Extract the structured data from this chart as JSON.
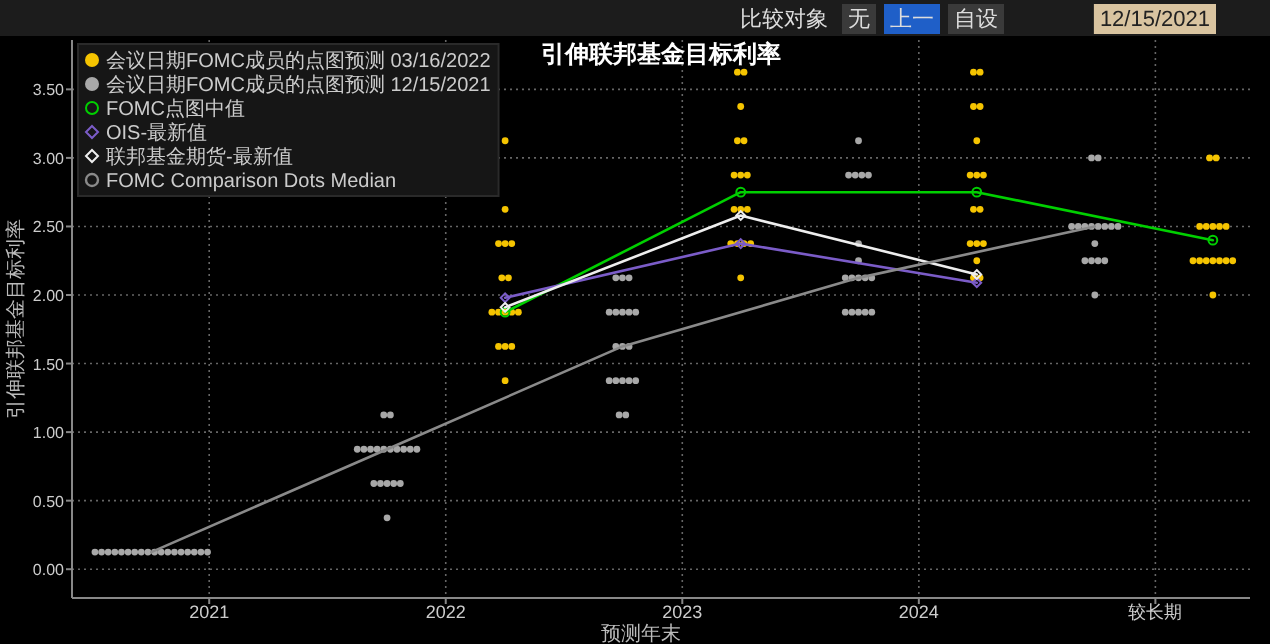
{
  "chart_data": {
    "type": "scatter",
    "title": "引伸联邦基金目标利率",
    "xlabel": "预测年末",
    "ylabel": "引伸联邦基金目标利率",
    "annotations": [
      "比较对象",
      "无",
      "上一",
      "自设",
      "12/15/2021"
    ],
    "xlim": [
      2020.42,
      2025.4
    ],
    "xticks": [
      2021,
      2022,
      2023,
      2024,
      {
        "value": 2025,
        "label": "较长期"
      }
    ],
    "ylim": [
      -0.21,
      3.86
    ],
    "yticks": [
      {
        "value": 0,
        "label": "0.00"
      },
      {
        "value": 0.5,
        "label": "0.50"
      },
      {
        "value": 1,
        "label": "1.00"
      },
      {
        "value": 1.5,
        "label": "1.50"
      },
      {
        "value": 2,
        "label": "2.00"
      },
      {
        "value": 2.5,
        "label": "2.50"
      },
      {
        "value": 3,
        "label": "3.00"
      },
      {
        "value": 3.5,
        "label": "3.50"
      }
    ],
    "grid": true,
    "legend": "top left",
    "series": [
      {
        "name": "会议日期FOMC成员的点图预测 03/16/2022",
        "color": "#f5c400",
        "x": [
          2022.251,
          2022.251,
          2022.223,
          2022.251,
          2022.279,
          2022.237,
          2022.265,
          2022.195,
          2022.223,
          2022.251,
          2022.279,
          2022.307,
          2022.223,
          2022.251,
          2022.279,
          2022.251,
          2023.233,
          2023.261,
          2023.247,
          2023.233,
          2023.261,
          2023.219,
          2023.247,
          2023.275,
          2023.219,
          2023.247,
          2023.275,
          2023.205,
          2023.233,
          2023.261,
          2023.289,
          2023.247,
          2024.231,
          2024.259,
          2024.231,
          2024.259,
          2024.245,
          2024.217,
          2024.245,
          2024.273,
          2024.231,
          2024.259,
          2024.217,
          2024.245,
          2024.273,
          2024.245,
          2024.231,
          2024.259,
          2025.229,
          2025.257,
          2025.187,
          2025.215,
          2025.243,
          2025.271,
          2025.299,
          2025.159,
          2025.187,
          2025.215,
          2025.243,
          2025.271,
          2025.299,
          2025.327,
          2025.243
        ],
        "values": [
          3.125,
          2.625,
          2.375,
          2.375,
          2.375,
          2.125,
          2.125,
          1.875,
          1.875,
          1.875,
          1.875,
          1.875,
          1.625,
          1.625,
          1.625,
          1.375,
          3.625,
          3.625,
          3.375,
          3.125,
          3.125,
          2.875,
          2.875,
          2.875,
          2.625,
          2.625,
          2.625,
          2.375,
          2.375,
          2.375,
          2.375,
          2.125,
          3.625,
          3.625,
          3.375,
          3.375,
          3.125,
          2.875,
          2.875,
          2.875,
          2.625,
          2.625,
          2.375,
          2.375,
          2.375,
          2.25,
          2.125,
          2.125,
          3.0,
          3.0,
          2.5,
          2.5,
          2.5,
          2.5,
          2.5,
          2.25,
          2.25,
          2.25,
          2.25,
          2.25,
          2.25,
          2.25,
          2.0
        ]
      },
      {
        "name": "会议日期FOMC成员的点图预测 12/15/2021",
        "color": "#a8a8a8",
        "x": [
          2020.517,
          2020.545,
          2020.573,
          2020.601,
          2020.629,
          2020.657,
          2020.685,
          2020.713,
          2020.741,
          2020.769,
          2020.797,
          2020.825,
          2020.853,
          2020.881,
          2020.909,
          2020.937,
          2020.965,
          2020.993,
          2021.738,
          2021.766,
          2021.626,
          2021.654,
          2021.682,
          2021.71,
          2021.738,
          2021.766,
          2021.794,
          2021.822,
          2021.85,
          2021.878,
          2021.696,
          2021.724,
          2021.752,
          2021.78,
          2021.808,
          2021.752,
          2022.719,
          2022.747,
          2022.775,
          2022.691,
          2022.719,
          2022.747,
          2022.775,
          2022.803,
          2022.719,
          2022.747,
          2022.775,
          2022.691,
          2022.719,
          2022.747,
          2022.775,
          2022.803,
          2022.733,
          2022.761,
          2023.745,
          2023.703,
          2023.731,
          2023.759,
          2023.787,
          2023.745,
          2023.745,
          2023.689,
          2023.717,
          2023.745,
          2023.773,
          2023.801,
          2023.689,
          2023.717,
          2023.745,
          2023.773,
          2023.801,
          2024.73,
          2024.758,
          2024.646,
          2024.674,
          2024.702,
          2024.73,
          2024.758,
          2024.786,
          2024.814,
          2024.842,
          2024.744,
          2024.702,
          2024.73,
          2024.758,
          2024.786,
          2024.744
        ],
        "values": [
          0.125,
          0.125,
          0.125,
          0.125,
          0.125,
          0.125,
          0.125,
          0.125,
          0.125,
          0.125,
          0.125,
          0.125,
          0.125,
          0.125,
          0.125,
          0.125,
          0.125,
          0.125,
          1.125,
          1.125,
          0.875,
          0.875,
          0.875,
          0.875,
          0.875,
          0.875,
          0.875,
          0.875,
          0.875,
          0.875,
          0.625,
          0.625,
          0.625,
          0.625,
          0.625,
          0.375,
          2.125,
          2.125,
          2.125,
          1.875,
          1.875,
          1.875,
          1.875,
          1.875,
          1.625,
          1.625,
          1.625,
          1.375,
          1.375,
          1.375,
          1.375,
          1.375,
          1.125,
          1.125,
          3.125,
          2.875,
          2.875,
          2.875,
          2.875,
          2.375,
          2.25,
          2.125,
          2.125,
          2.125,
          2.125,
          2.125,
          1.875,
          1.875,
          1.875,
          1.875,
          1.875,
          3.0,
          3.0,
          2.5,
          2.5,
          2.5,
          2.5,
          2.5,
          2.5,
          2.5,
          2.5,
          2.375,
          2.25,
          2.25,
          2.25,
          2.25,
          2.0
        ]
      },
      {
        "name": "FOMC点图中值",
        "type": "line",
        "color": "#00d000",
        "marker": "circle",
        "x": [
          2022.251,
          2023.247,
          2024.245,
          2025.243
        ],
        "values": [
          1.875,
          2.75,
          2.75,
          2.4
        ]
      },
      {
        "name": "OIS-最新值",
        "type": "line",
        "color": "#7b5cc8",
        "marker": "diamond",
        "x": [
          2022.251,
          2023.247,
          2024.245
        ],
        "values": [
          1.98,
          2.375,
          2.09
        ]
      },
      {
        "name": "联邦基金期货-最新值",
        "type": "line",
        "color": "#eeeeee",
        "marker": "diamond",
        "x": [
          2022.251,
          2023.247,
          2024.245
        ],
        "values": [
          1.91,
          2.58,
          2.15
        ]
      },
      {
        "name": "FOMC Comparison Dots Median",
        "type": "line",
        "color": "#8a8a8a",
        "marker": "none",
        "x": [
          2020.755,
          2021.752,
          2022.747,
          2023.745,
          2024.744
        ],
        "values": [
          0.125,
          0.875,
          1.625,
          2.125,
          2.5
        ]
      }
    ]
  }
}
